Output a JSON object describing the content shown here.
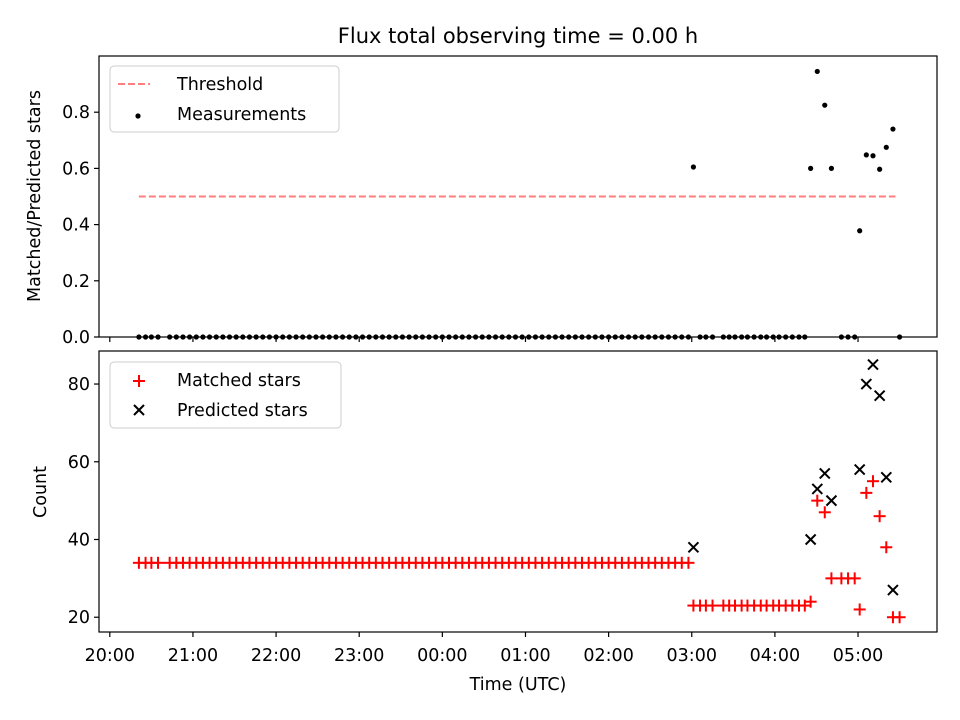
{
  "figure": {
    "title": "Flux total observing time = 0.00 h",
    "xlabel": "Time (UTC)",
    "x_tick_labels": [
      "20:00",
      "21:00",
      "22:00",
      "23:00",
      "00:00",
      "01:00",
      "02:00",
      "03:00",
      "04:00",
      "05:00"
    ]
  },
  "chart_data": [
    {
      "type": "scatter",
      "ylabel": "Matched/Predicted stars",
      "ylim": [
        0,
        1.0
      ],
      "y_ticks": [
        0.0,
        0.2,
        0.4,
        0.6,
        0.8
      ],
      "y_tick_labels": [
        "0.0",
        "0.2",
        "0.4",
        "0.6",
        "0.8"
      ],
      "x_unit": "hours since 20:00 UTC",
      "xlim": [
        -0.13,
        9.95
      ],
      "legend_position": "top-left",
      "grid": false,
      "threshold": {
        "name": "Threshold",
        "x": [
          0.35,
          9.45
        ],
        "y": 0.5,
        "color": "#ff7f7f",
        "style": "dashed"
      },
      "series": [
        {
          "name": "Measurements",
          "color": "#000000",
          "marker": "dot",
          "points": [
            [
              0.35,
              0
            ],
            [
              0.43,
              0
            ],
            [
              0.5,
              0
            ],
            [
              0.58,
              0
            ],
            [
              0.72,
              0
            ],
            [
              0.8,
              0
            ],
            [
              0.88,
              0
            ],
            [
              0.96,
              0
            ],
            [
              1.04,
              0
            ],
            [
              1.12,
              0
            ],
            [
              1.2,
              0
            ],
            [
              1.28,
              0
            ],
            [
              1.36,
              0
            ],
            [
              1.44,
              0
            ],
            [
              1.52,
              0
            ],
            [
              1.6,
              0
            ],
            [
              1.68,
              0
            ],
            [
              1.76,
              0
            ],
            [
              1.84,
              0
            ],
            [
              1.92,
              0
            ],
            [
              2.0,
              0
            ],
            [
              2.08,
              0
            ],
            [
              2.16,
              0
            ],
            [
              2.24,
              0
            ],
            [
              2.32,
              0
            ],
            [
              2.4,
              0
            ],
            [
              2.48,
              0
            ],
            [
              2.56,
              0
            ],
            [
              2.64,
              0
            ],
            [
              2.72,
              0
            ],
            [
              2.8,
              0
            ],
            [
              2.88,
              0
            ],
            [
              2.96,
              0
            ],
            [
              3.04,
              0
            ],
            [
              3.12,
              0
            ],
            [
              3.2,
              0
            ],
            [
              3.28,
              0
            ],
            [
              3.36,
              0
            ],
            [
              3.44,
              0
            ],
            [
              3.52,
              0
            ],
            [
              3.6,
              0
            ],
            [
              3.68,
              0
            ],
            [
              3.76,
              0
            ],
            [
              3.84,
              0
            ],
            [
              3.92,
              0
            ],
            [
              4.0,
              0
            ],
            [
              4.08,
              0
            ],
            [
              4.16,
              0
            ],
            [
              4.24,
              0
            ],
            [
              4.32,
              0
            ],
            [
              4.4,
              0
            ],
            [
              4.48,
              0
            ],
            [
              4.56,
              0
            ],
            [
              4.64,
              0
            ],
            [
              4.72,
              0
            ],
            [
              4.8,
              0
            ],
            [
              4.88,
              0
            ],
            [
              4.96,
              0
            ],
            [
              5.04,
              0
            ],
            [
              5.12,
              0
            ],
            [
              5.2,
              0
            ],
            [
              5.28,
              0
            ],
            [
              5.36,
              0
            ],
            [
              5.44,
              0
            ],
            [
              5.52,
              0
            ],
            [
              5.6,
              0
            ],
            [
              5.68,
              0
            ],
            [
              5.76,
              0
            ],
            [
              5.84,
              0
            ],
            [
              5.92,
              0
            ],
            [
              6.0,
              0
            ],
            [
              6.08,
              0
            ],
            [
              6.16,
              0
            ],
            [
              6.24,
              0
            ],
            [
              6.32,
              0
            ],
            [
              6.4,
              0
            ],
            [
              6.48,
              0
            ],
            [
              6.56,
              0
            ],
            [
              6.64,
              0
            ],
            [
              6.72,
              0
            ],
            [
              6.8,
              0
            ],
            [
              6.88,
              0
            ],
            [
              6.96,
              0
            ],
            [
              7.02,
              0.605
            ],
            [
              7.1,
              0
            ],
            [
              7.17,
              0
            ],
            [
              7.25,
              0
            ],
            [
              7.38,
              0
            ],
            [
              7.45,
              0
            ],
            [
              7.52,
              0
            ],
            [
              7.6,
              0
            ],
            [
              7.67,
              0
            ],
            [
              7.75,
              0
            ],
            [
              7.83,
              0
            ],
            [
              7.9,
              0
            ],
            [
              7.98,
              0
            ],
            [
              8.05,
              0
            ],
            [
              8.13,
              0
            ],
            [
              8.21,
              0
            ],
            [
              8.29,
              0
            ],
            [
              8.36,
              0
            ],
            [
              8.43,
              0.6
            ],
            [
              8.51,
              0.945
            ],
            [
              8.6,
              0.825
            ],
            [
              8.68,
              0.6
            ],
            [
              8.8,
              0
            ],
            [
              8.88,
              0
            ],
            [
              8.96,
              0
            ],
            [
              9.02,
              0.378
            ],
            [
              9.1,
              0.648
            ],
            [
              9.18,
              0.645
            ],
            [
              9.26,
              0.597
            ],
            [
              9.34,
              0.675
            ],
            [
              9.42,
              0.74
            ],
            [
              9.5,
              0
            ]
          ]
        }
      ]
    },
    {
      "type": "scatter",
      "ylabel": "Count",
      "ylim": [
        16.2,
        88.5
      ],
      "y_ticks": [
        20,
        40,
        60,
        80
      ],
      "y_tick_labels": [
        "20",
        "40",
        "60",
        "80"
      ],
      "x_unit": "hours since 20:00 UTC",
      "xlim": [
        -0.13,
        9.95
      ],
      "legend_position": "top-left",
      "grid": false,
      "series": [
        {
          "name": "Matched stars",
          "color": "#ff0000",
          "marker": "plus",
          "points": [
            [
              0.35,
              34
            ],
            [
              0.43,
              34
            ],
            [
              0.5,
              34
            ],
            [
              0.58,
              34
            ],
            [
              0.72,
              34
            ],
            [
              0.8,
              34
            ],
            [
              0.88,
              34
            ],
            [
              0.96,
              34
            ],
            [
              1.04,
              34
            ],
            [
              1.12,
              34
            ],
            [
              1.2,
              34
            ],
            [
              1.28,
              34
            ],
            [
              1.36,
              34
            ],
            [
              1.44,
              34
            ],
            [
              1.52,
              34
            ],
            [
              1.6,
              34
            ],
            [
              1.68,
              34
            ],
            [
              1.76,
              34
            ],
            [
              1.84,
              34
            ],
            [
              1.92,
              34
            ],
            [
              2.0,
              34
            ],
            [
              2.08,
              34
            ],
            [
              2.16,
              34
            ],
            [
              2.24,
              34
            ],
            [
              2.32,
              34
            ],
            [
              2.4,
              34
            ],
            [
              2.48,
              34
            ],
            [
              2.56,
              34
            ],
            [
              2.64,
              34
            ],
            [
              2.72,
              34
            ],
            [
              2.8,
              34
            ],
            [
              2.88,
              34
            ],
            [
              2.96,
              34
            ],
            [
              3.04,
              34
            ],
            [
              3.12,
              34
            ],
            [
              3.2,
              34
            ],
            [
              3.28,
              34
            ],
            [
              3.36,
              34
            ],
            [
              3.44,
              34
            ],
            [
              3.52,
              34
            ],
            [
              3.6,
              34
            ],
            [
              3.68,
              34
            ],
            [
              3.76,
              34
            ],
            [
              3.84,
              34
            ],
            [
              3.92,
              34
            ],
            [
              4.0,
              34
            ],
            [
              4.08,
              34
            ],
            [
              4.16,
              34
            ],
            [
              4.24,
              34
            ],
            [
              4.32,
              34
            ],
            [
              4.4,
              34
            ],
            [
              4.48,
              34
            ],
            [
              4.56,
              34
            ],
            [
              4.64,
              34
            ],
            [
              4.72,
              34
            ],
            [
              4.8,
              34
            ],
            [
              4.88,
              34
            ],
            [
              4.96,
              34
            ],
            [
              5.04,
              34
            ],
            [
              5.12,
              34
            ],
            [
              5.2,
              34
            ],
            [
              5.28,
              34
            ],
            [
              5.36,
              34
            ],
            [
              5.44,
              34
            ],
            [
              5.52,
              34
            ],
            [
              5.6,
              34
            ],
            [
              5.68,
              34
            ],
            [
              5.76,
              34
            ],
            [
              5.84,
              34
            ],
            [
              5.92,
              34
            ],
            [
              6.0,
              34
            ],
            [
              6.08,
              34
            ],
            [
              6.16,
              34
            ],
            [
              6.24,
              34
            ],
            [
              6.32,
              34
            ],
            [
              6.4,
              34
            ],
            [
              6.48,
              34
            ],
            [
              6.56,
              34
            ],
            [
              6.64,
              34
            ],
            [
              6.72,
              34
            ],
            [
              6.8,
              34
            ],
            [
              6.88,
              34
            ],
            [
              6.96,
              34
            ],
            [
              7.02,
              23
            ],
            [
              7.1,
              23
            ],
            [
              7.17,
              23
            ],
            [
              7.25,
              23
            ],
            [
              7.38,
              23
            ],
            [
              7.45,
              23
            ],
            [
              7.52,
              23
            ],
            [
              7.6,
              23
            ],
            [
              7.67,
              23
            ],
            [
              7.75,
              23
            ],
            [
              7.83,
              23
            ],
            [
              7.9,
              23
            ],
            [
              7.98,
              23
            ],
            [
              8.05,
              23
            ],
            [
              8.13,
              23
            ],
            [
              8.21,
              23
            ],
            [
              8.29,
              23
            ],
            [
              8.36,
              23
            ],
            [
              8.43,
              24
            ],
            [
              8.51,
              50
            ],
            [
              8.6,
              47
            ],
            [
              8.68,
              30
            ],
            [
              8.8,
              30
            ],
            [
              8.88,
              30
            ],
            [
              8.96,
              30
            ],
            [
              9.02,
              22
            ],
            [
              9.1,
              52
            ],
            [
              9.18,
              55
            ],
            [
              9.26,
              46
            ],
            [
              9.34,
              38
            ],
            [
              9.42,
              20
            ],
            [
              9.5,
              20
            ]
          ]
        },
        {
          "name": "Predicted stars",
          "color": "#000000",
          "marker": "x",
          "points": [
            [
              7.02,
              38
            ],
            [
              8.43,
              40
            ],
            [
              8.51,
              53
            ],
            [
              8.6,
              57
            ],
            [
              8.68,
              50
            ],
            [
              9.02,
              58
            ],
            [
              9.1,
              80
            ],
            [
              9.18,
              85
            ],
            [
              9.26,
              77
            ],
            [
              9.34,
              56
            ],
            [
              9.42,
              27
            ]
          ]
        }
      ]
    }
  ]
}
